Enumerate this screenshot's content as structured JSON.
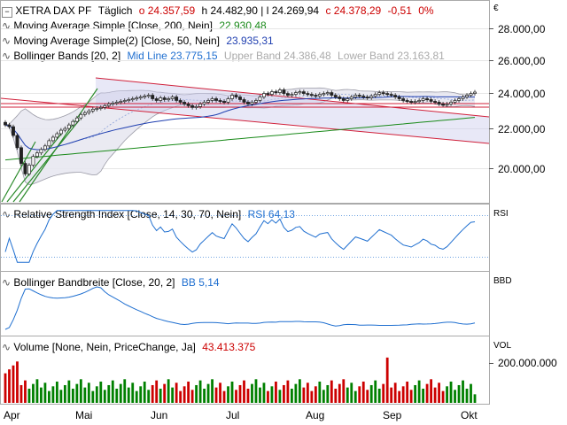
{
  "header": {
    "title": "XETRA DAX PF",
    "period": "Täglich",
    "ohlc_text": "o 24.357,59",
    "high_text": "h 24.482,90",
    "low_text": "l 24.269,94",
    "close_text": "c 24.378,29",
    "change": "-0,51",
    "change_pct": "0%"
  },
  "legends": {
    "sma200_label": "Moving Average Simple [Close, 200, Nein]",
    "sma200_value": "22.930,48",
    "sma50_label": "Moving Average Simple(2) [Close, 50, Nein]",
    "sma50_value": "23.935,31",
    "bb_label": "Bollinger Bands [20, 2]",
    "bb_mid": "Mid Line 23.775,15",
    "bb_upper": "Upper Band 24.386,48",
    "bb_lower": "Lower Band 23.163,81",
    "rsi_label": "Relative Strength Index [Close, 14, 30, 70, Nein]",
    "rsi_value": "RSI 64,13",
    "bbw_label": "Bollinger Bandbreite [Close, 20, 2]",
    "bbw_value": "BB 5,14",
    "vol_label": "Volume [None, Nein, PriceChange, Ja]",
    "vol_value": "43.413.375"
  },
  "axes": {
    "currency": "€",
    "price_ticks": [
      "28.000,00",
      "26.000,00",
      "24.000,00",
      "22.000,00",
      "20.000,00"
    ],
    "rsi_tag": "RSI",
    "bbd_tag": "BBD",
    "vol_tag": "VOL",
    "vol_tick": "200.000.000",
    "months": [
      "Apr",
      "Mai",
      "Jun",
      "Jul",
      "Aug",
      "Sep",
      "Okt"
    ]
  },
  "colors": {
    "up": "#008000",
    "down": "#cc0000",
    "sma200": "#1a8a1a",
    "sma50": "#1f3fb0",
    "bb_fill": "#e6e6f0",
    "bb_line": "#9a9aa6",
    "rsi": "#1f6fd0",
    "trend_red": "#d0203a",
    "trend_green": "#2a8a2a",
    "chan_fill": "#ccccee"
  },
  "chart_data": [
    {
      "type": "candlestick",
      "title": "XETRA DAX PF",
      "x": [
        "Apr",
        "Mai",
        "Jun",
        "Jul",
        "Aug",
        "Sep",
        "Okt"
      ],
      "ylim": [
        18500,
        29000
      ],
      "series": [
        {
          "name": "Moving Average Simple [Close, 200, Nein]",
          "last": 22930.48
        },
        {
          "name": "Moving Average Simple(2) [Close, 50, Nein]",
          "last": 23935.31
        },
        {
          "name": "Bollinger Bands [20, 2]",
          "mid": 23775.15,
          "upper": 24386.48,
          "lower": 23163.81
        }
      ],
      "closes": [
        22500,
        22400,
        21900,
        21200,
        20300,
        19700,
        20200,
        20700,
        20900,
        21100,
        21300,
        21600,
        21800,
        22000,
        22200,
        22300,
        22500,
        22700,
        22900,
        23100,
        23200,
        23300,
        23400,
        23450,
        23500,
        23600,
        23700,
        23750,
        23800,
        23850,
        23900,
        23950,
        24000,
        24050,
        24100,
        24150,
        24200,
        24000,
        23900,
        24050,
        23950,
        24000,
        24100,
        23900,
        23800,
        23700,
        23600,
        23500,
        23550,
        23700,
        23800,
        23900,
        24000,
        23900,
        23850,
        23800,
        24000,
        24200,
        24100,
        23950,
        23800,
        23700,
        23800,
        23900,
        24100,
        24300,
        24250,
        24400,
        24350,
        24500,
        24300,
        24200,
        24250,
        24350,
        24400,
        24300,
        24250,
        24200,
        24150,
        24250,
        24300,
        24350,
        24200,
        24100,
        24000,
        23900,
        24000,
        24100,
        24200,
        24150,
        24100,
        24050,
        24150,
        24250,
        24350,
        24300,
        24250,
        24200,
        24100,
        24000,
        23900,
        23850,
        23800,
        23850,
        23900,
        24000,
        23950,
        23850,
        23800,
        23700,
        23650,
        23700,
        23800,
        23900,
        24000,
        24100,
        24200,
        24300,
        24378.29
      ]
    },
    {
      "type": "line",
      "title": "Relative Strength Index [Close, 14, 30, 70, Nein]",
      "ylim": [
        20,
        80
      ],
      "last": 64.13
    },
    {
      "type": "line",
      "title": "Bollinger Bandbreite [Close, 20, 2]",
      "last": 5.14
    },
    {
      "type": "bar",
      "title": "Volume [None, Nein, PriceChange, Ja]",
      "last": 43413375,
      "ylim": [
        0,
        250000000
      ]
    }
  ]
}
